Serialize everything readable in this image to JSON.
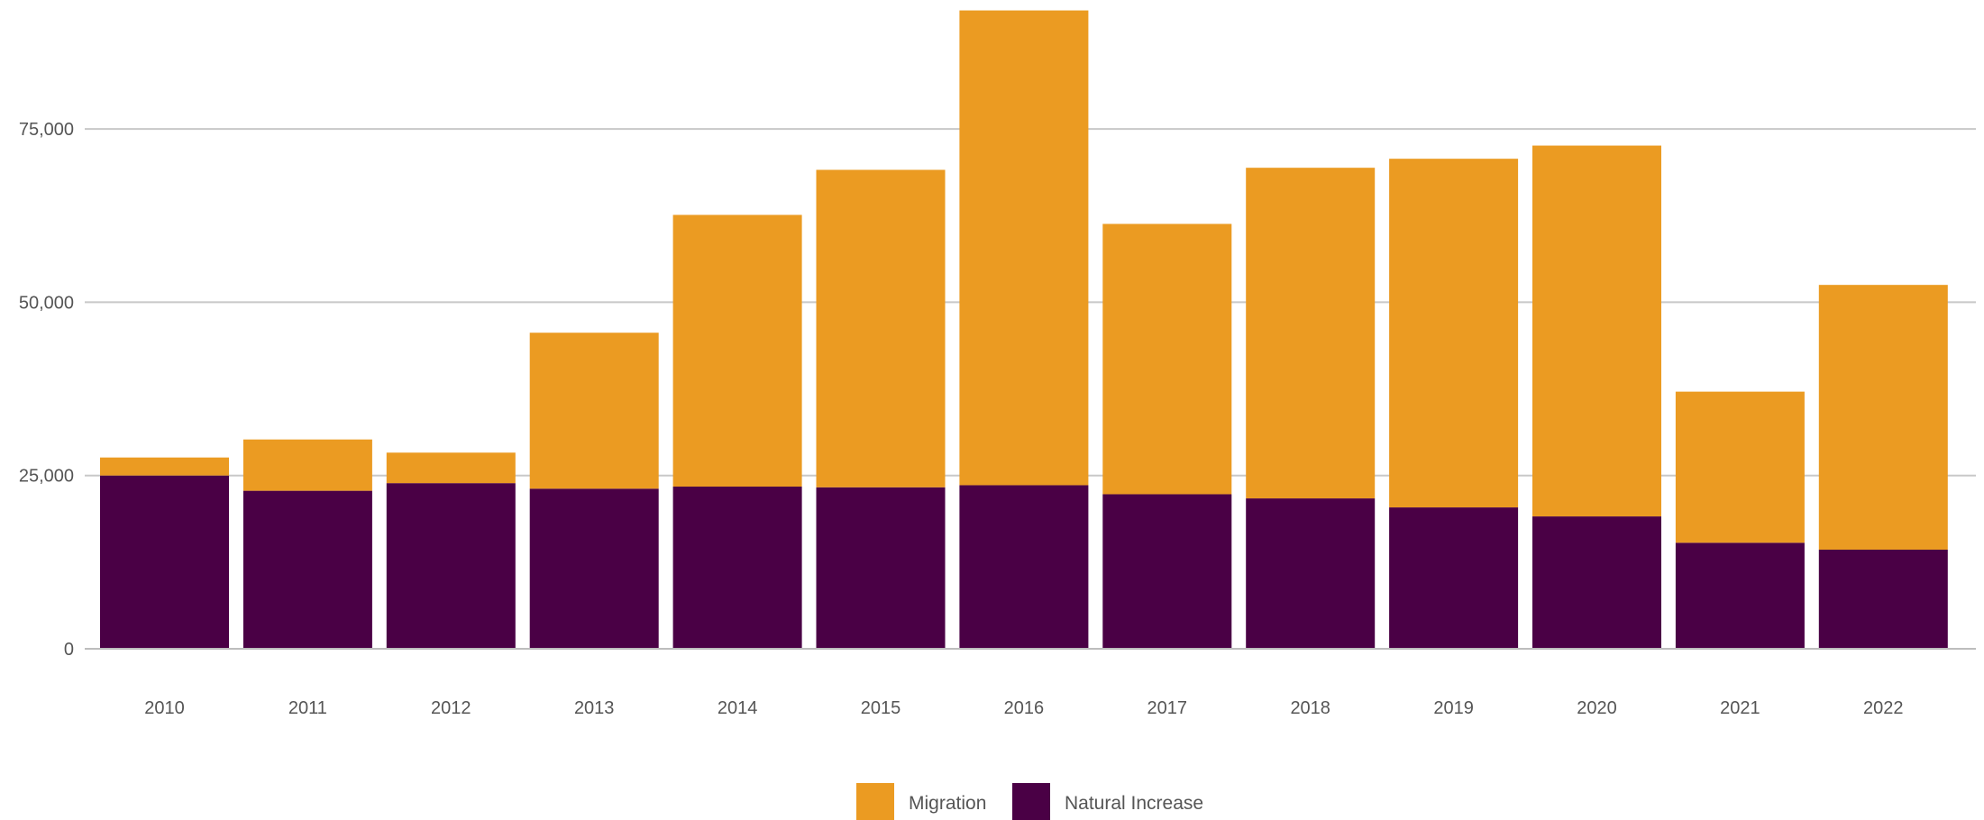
{
  "chart_data": {
    "type": "bar",
    "stacked": true,
    "title": "",
    "xlabel": "",
    "ylabel": "",
    "categories": [
      "2010",
      "2011",
      "2012",
      "2013",
      "2014",
      "2015",
      "2016",
      "2017",
      "2018",
      "2019",
      "2020",
      "2021",
      "2022"
    ],
    "series": [
      {
        "name": "Natural Increase",
        "color": "#4a0045",
        "values": [
          25000,
          22800,
          23900,
          23100,
          23400,
          23300,
          23600,
          22300,
          21700,
          20400,
          19100,
          15300,
          14300
        ]
      },
      {
        "name": "Migration",
        "color": "#eb9b22",
        "values": [
          2600,
          7400,
          4400,
          22500,
          39200,
          45800,
          68500,
          39000,
          47700,
          50300,
          53500,
          21800,
          38200
        ]
      }
    ],
    "ylim": [
      0,
      92000
    ],
    "yticks": [
      0,
      25000,
      50000,
      75000
    ],
    "ytick_labels": [
      "0",
      "25,000",
      "50,000",
      "75,000"
    ],
    "grid": true,
    "legend": {
      "position": "bottom-center",
      "entries": [
        "Migration",
        "Natural Increase"
      ]
    }
  }
}
